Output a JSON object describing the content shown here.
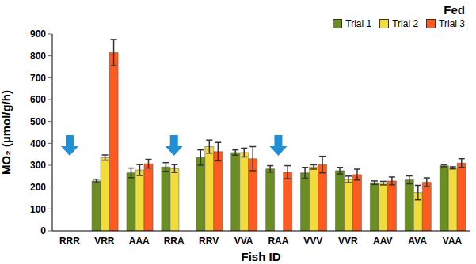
{
  "chart_data": {
    "type": "bar",
    "title": "Fed",
    "x_label": "Fish ID",
    "y_label": "MO₂ (µmol/g/h)",
    "categories": [
      "RRR",
      "VRR",
      "AAA",
      "RRA",
      "RRV",
      "VVA",
      "RAA",
      "VVV",
      "VVR",
      "AAV",
      "AVA",
      "VAA"
    ],
    "series": [
      {
        "name": "Trial 1",
        "color": "#6b8e23",
        "values": [
          null,
          228,
          265,
          292,
          335,
          358,
          283,
          265,
          275,
          220,
          233,
          298
        ],
        "errors": [
          null,
          8,
          22,
          20,
          35,
          12,
          15,
          25,
          15,
          8,
          18,
          5
        ]
      },
      {
        "name": "Trial 2",
        "color": "#f2dc3c",
        "values": [
          null,
          335,
          278,
          285,
          385,
          358,
          null,
          292,
          235,
          218,
          175,
          288
        ],
        "errors": [
          null,
          12,
          25,
          18,
          30,
          20,
          null,
          10,
          15,
          8,
          33,
          5
        ]
      },
      {
        "name": "Trial 3",
        "color": "#ff5a1f",
        "values": [
          null,
          815,
          307,
          null,
          362,
          330,
          268,
          303,
          257,
          228,
          222,
          310
        ],
        "errors": [
          null,
          60,
          20,
          null,
          42,
          55,
          30,
          38,
          25,
          18,
          20,
          20
        ]
      }
    ],
    "ylim": [
      0,
      900
    ],
    "yticks": [
      0,
      100,
      200,
      300,
      400,
      500,
      600,
      700,
      800,
      900
    ],
    "grid": false,
    "legend": "top-right"
  }
}
